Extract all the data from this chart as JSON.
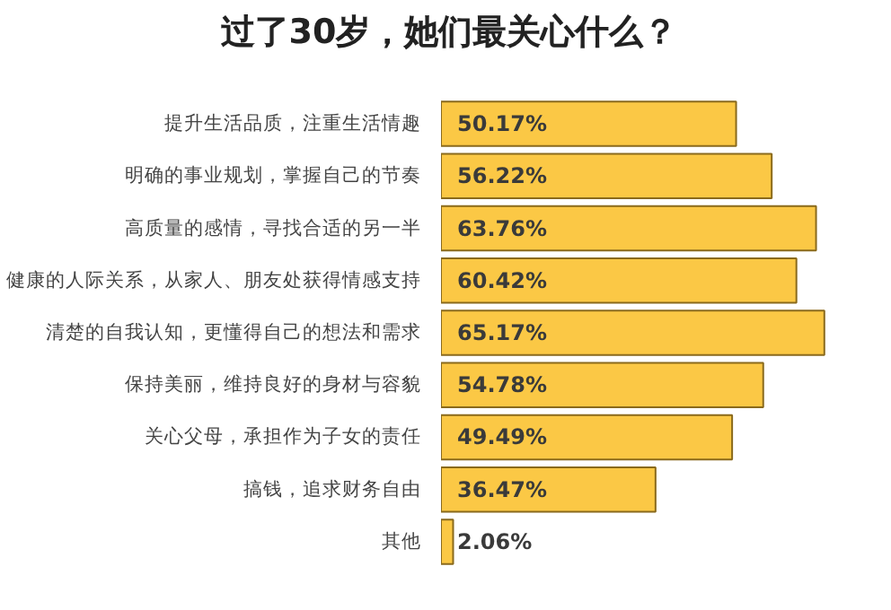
{
  "chart_data": {
    "type": "bar",
    "orientation": "horizontal",
    "title": "过了30岁，她们最关心什么？",
    "categories": [
      "提升生活品质，注重生活情趣",
      "明确的事业规划，掌握自己的节奏",
      "高质量的感情，寻找合适的另一半",
      "健康的人际关系，从家人、朋友处获得情感支持",
      "清楚的自我认知，更懂得自己的想法和需求",
      "保持美丽，维持良好的身材与容貌",
      "关心父母，承担作为子女的责任",
      "搞钱，追求财务自由",
      "其他"
    ],
    "values": [
      50.17,
      56.22,
      63.76,
      60.42,
      65.17,
      54.78,
      49.49,
      36.47,
      2.06
    ],
    "value_labels": [
      "50.17%",
      "56.22%",
      "63.76%",
      "60.42%",
      "65.17%",
      "54.78%",
      "49.49%",
      "36.47%",
      "2.06%"
    ],
    "color": "#fbc845",
    "tick_labels": "y",
    "grid": false
  }
}
